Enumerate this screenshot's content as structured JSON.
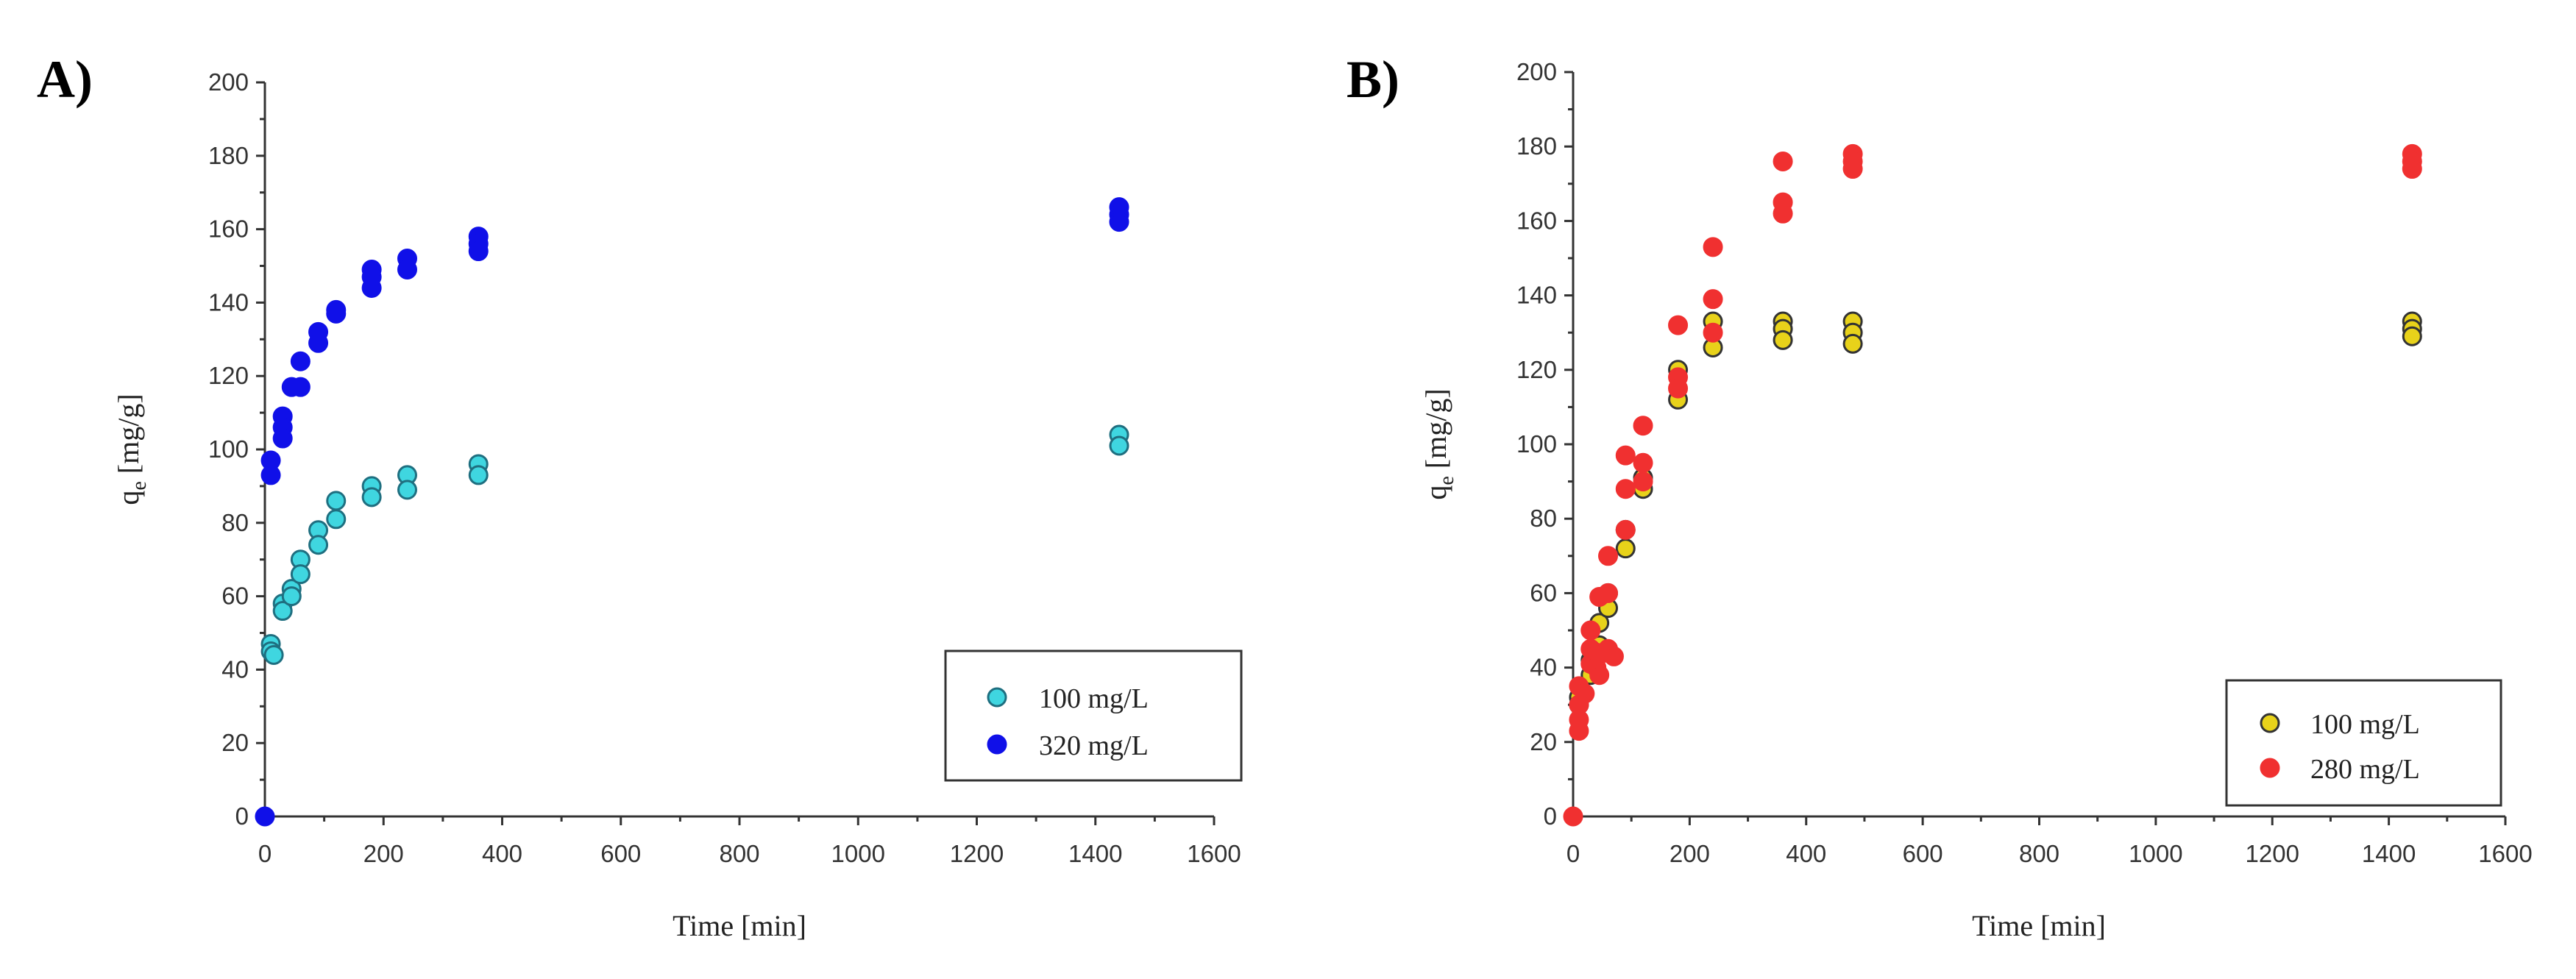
{
  "chart_data": [
    {
      "type": "scatter",
      "panel_label": "A)",
      "xlabel": "Time [min]",
      "ylabel": "q",
      "ylabel_sub": "e",
      "ylabel_unit": " [mg/g]",
      "xlim": [
        0,
        1600
      ],
      "ylim": [
        0,
        200
      ],
      "xticks": [
        "0",
        "200",
        "400",
        "600",
        "800",
        "1000",
        "1200",
        "1400",
        "1600"
      ],
      "yticks": [
        "0",
        "20",
        "40",
        "60",
        "80",
        "100",
        "120",
        "140",
        "160",
        "180",
        "200"
      ],
      "legend_position": "bottom-right",
      "series": [
        {
          "name": "100 mg/L",
          "color": "#3fd6e0",
          "stroke": "#1f6f80",
          "points": [
            [
              10,
              47
            ],
            [
              10,
              45
            ],
            [
              15,
              44
            ],
            [
              30,
              58
            ],
            [
              30,
              56
            ],
            [
              45,
              62
            ],
            [
              45,
              60
            ],
            [
              60,
              70
            ],
            [
              60,
              66
            ],
            [
              90,
              78
            ],
            [
              90,
              74
            ],
            [
              120,
              86
            ],
            [
              120,
              81
            ],
            [
              180,
              90
            ],
            [
              180,
              87
            ],
            [
              240,
              93
            ],
            [
              240,
              89
            ],
            [
              360,
              96
            ],
            [
              360,
              93
            ],
            [
              1440,
              104
            ],
            [
              1440,
              101
            ]
          ]
        },
        {
          "name": "320 mg/L",
          "color": "#1010e8",
          "stroke": "#1010e8",
          "points": [
            [
              0,
              0
            ],
            [
              10,
              97
            ],
            [
              10,
              93
            ],
            [
              30,
              109
            ],
            [
              30,
              106
            ],
            [
              30,
              103
            ],
            [
              45,
              117
            ],
            [
              60,
              124
            ],
            [
              60,
              117
            ],
            [
              90,
              132
            ],
            [
              90,
              129
            ],
            [
              120,
              138
            ],
            [
              120,
              137
            ],
            [
              180,
              149
            ],
            [
              180,
              147
            ],
            [
              180,
              144
            ],
            [
              240,
              152
            ],
            [
              240,
              149
            ],
            [
              360,
              158
            ],
            [
              360,
              156
            ],
            [
              360,
              154
            ],
            [
              1440,
              166
            ],
            [
              1440,
              164
            ],
            [
              1440,
              162
            ]
          ]
        }
      ]
    },
    {
      "type": "scatter",
      "panel_label": "B)",
      "xlabel": "Time [min]",
      "ylabel": "q",
      "ylabel_sub": "e",
      "ylabel_unit": " [mg/g]",
      "xlim": [
        0,
        1600
      ],
      "ylim": [
        0,
        200
      ],
      "xticks": [
        "0",
        "200",
        "400",
        "600",
        "800",
        "1000",
        "1200",
        "1400",
        "1600"
      ],
      "yticks": [
        "0",
        "20",
        "40",
        "60",
        "80",
        "100",
        "120",
        "140",
        "160",
        "180",
        "200"
      ],
      "legend_position": "bottom-right",
      "series": [
        {
          "name": "100 mg/L",
          "color": "#e8d21a",
          "stroke": "#333333",
          "points": [
            [
              10,
              32
            ],
            [
              10,
              30
            ],
            [
              30,
              42
            ],
            [
              30,
              38
            ],
            [
              45,
              52
            ],
            [
              45,
              46
            ],
            [
              60,
              60
            ],
            [
              60,
              56
            ],
            [
              90,
              77
            ],
            [
              90,
              72
            ],
            [
              120,
              91
            ],
            [
              120,
              88
            ],
            [
              180,
              120
            ],
            [
              180,
              112
            ],
            [
              240,
              133
            ],
            [
              240,
              126
            ],
            [
              360,
              133
            ],
            [
              360,
              131
            ],
            [
              360,
              128
            ],
            [
              480,
              133
            ],
            [
              480,
              130
            ],
            [
              480,
              127
            ],
            [
              1440,
              133
            ],
            [
              1440,
              131
            ],
            [
              1440,
              129
            ]
          ]
        },
        {
          "name": "280 mg/L",
          "color": "#f03030",
          "stroke": "#f03030",
          "points": [
            [
              0,
              0
            ],
            [
              10,
              35
            ],
            [
              10,
              30
            ],
            [
              10,
              26
            ],
            [
              10,
              23
            ],
            [
              20,
              33
            ],
            [
              30,
              50
            ],
            [
              30,
              45
            ],
            [
              30,
              41
            ],
            [
              40,
              44
            ],
            [
              40,
              40
            ],
            [
              45,
              59
            ],
            [
              45,
              38
            ],
            [
              55,
              44
            ],
            [
              60,
              70
            ],
            [
              60,
              60
            ],
            [
              60,
              45
            ],
            [
              70,
              43
            ],
            [
              90,
              97
            ],
            [
              90,
              88
            ],
            [
              90,
              77
            ],
            [
              120,
              105
            ],
            [
              120,
              95
            ],
            [
              120,
              90
            ],
            [
              180,
              132
            ],
            [
              180,
              118
            ],
            [
              180,
              115
            ],
            [
              240,
              153
            ],
            [
              240,
              139
            ],
            [
              240,
              130
            ],
            [
              360,
              176
            ],
            [
              360,
              165
            ],
            [
              360,
              162
            ],
            [
              480,
              178
            ],
            [
              480,
              176
            ],
            [
              480,
              174
            ],
            [
              1440,
              178
            ],
            [
              1440,
              176
            ],
            [
              1440,
              174
            ]
          ]
        }
      ]
    }
  ]
}
